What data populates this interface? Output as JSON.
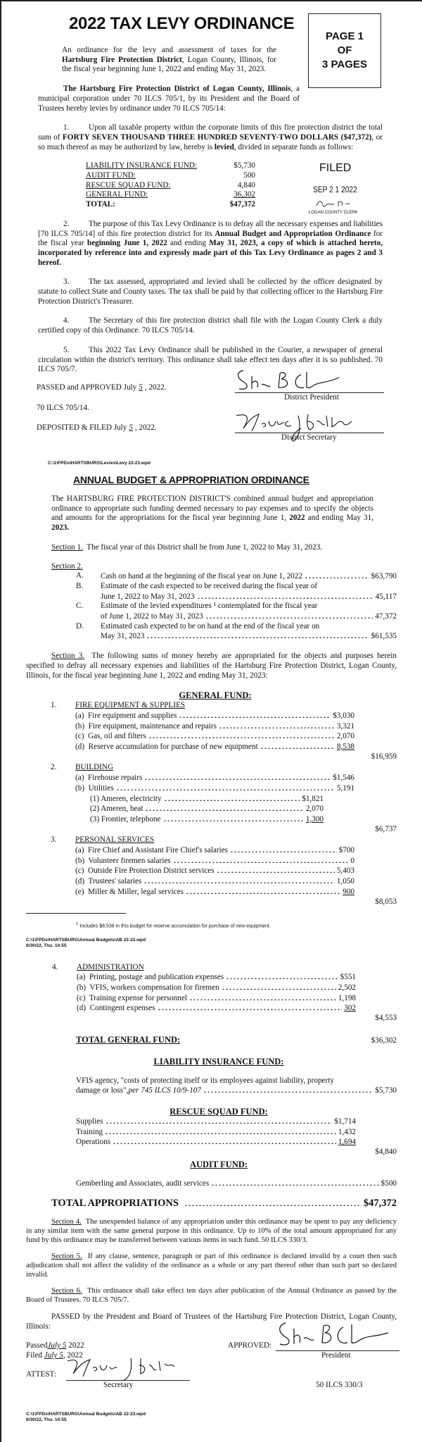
{
  "levy": {
    "title": "2022 TAX LEVY ORDINANCE",
    "page_box": [
      "PAGE 1",
      "OF",
      "3 PAGES"
    ],
    "intro": {
      "pre": "An ordinance for the levy and assessment of taxes for the ",
      "bold": "Hartsburg Fire Protection District",
      "post": ", Logan County, Illinois, for the fiscal year beginning June 1, 2022 and ending May 31, 2023."
    },
    "preamble": {
      "bold": "The Hartsburg Fire Protection District of Logan County, Illinois",
      "post": ", a municipal corporation under 70 ILCS 705/1, by its President and the Board of Trustees hereby levies by ordinance under 70 ILCS 705/14:"
    },
    "item1": {
      "num": "1.",
      "pre": "Upon all taxable property within the corporate limits of this fire protection district the total sum of ",
      "bold": "FORTY SEVEN THOUSAND THREE HUNDRED SEVENTY-TWO DOLLARS ($47,372)",
      "mid": ", or so much thereof as may be authorized by law, hereby is ",
      "bold2": "levied",
      "post": ", divided in separate funds as follows:"
    },
    "funds": [
      {
        "name": "LIABILITY INSURANCE FUND:",
        "amount": "$5,730"
      },
      {
        "name": "AUDIT FUND:",
        "amount": "500"
      },
      {
        "name": "RESCUE SQUAD FUND:",
        "amount": "4,840"
      },
      {
        "name": "GENERAL FUND:",
        "amount": "36,302"
      }
    ],
    "funds_total": {
      "name": "TOTAL:",
      "amount": "$47,372"
    },
    "stamp": {
      "filed": "FILED",
      "date": "SEP 2 1 2022",
      "clerk": "LOGAN COUNTY CLERK"
    },
    "item2": {
      "num": "2.",
      "a": "The purpose of this Tax Levy Ordinance is to defray all the necessary expenses and liabilities [70 ILCS 705/14] of this fire protection district for its ",
      "b": "Annual Budget and Appropriation Ordinance",
      "c": " for the fiscal year ",
      "d": "beginning June 1, 2022",
      "e": " and ending ",
      "f": "May 31, 2023, a copy of which is attached hereto, incorporated by reference into and expressly made part of this Tax Levy Ordinance as pages 2 and 3 hereof."
    },
    "item3": {
      "num": "3.",
      "text": "The tax assessed, appropriated and levied shall be collected by the officer designated by statute to collect State and County taxes.  The tax shall be paid by that collecting officer to the Hartsburg Fire Protection District's Treasurer."
    },
    "item4": {
      "num": "4.",
      "text": "The Secretary of this fire protection district shall file with the Logan County Clerk a duly certified copy of this Ordinance.  70 ILCS 705/14."
    },
    "item5": {
      "num": "5.",
      "text": "This 2022 Tax Levy Ordinance shall be published in the Courier, a newspaper of general circulation within the district's territory.  This ordinance shall take effect ten days after it is so published. 70 ILCS 705/7."
    },
    "passed": {
      "pre": "PASSED and APPROVED July",
      "day": "5",
      "post": ", 2022."
    },
    "president_label": "District President",
    "statute": "70 ILCS 705/14.",
    "deposited": {
      "pre": "DEPOSITED & FILED July",
      "day": "5",
      "post": ", 2022."
    },
    "secretary_label": "District Secretary",
    "file_path": "C:\\1\\FPDs\\HARTSBURG\\Levies\\Levy 22-23.wpd"
  },
  "budget": {
    "title": "ANNUAL BUDGET & APPROPRIATION ORDINANCE",
    "intro": {
      "pre": "The HARTSBURG FIRE PROTECTION DISTRICT'S combined annual budget and appropriation ordinance to appropriate such funding deemed necessary to pay expenses and to specify the objects and amounts for the appropriations for the fiscal year beginning June 1, ",
      "b1": "2022",
      "mid": " and ending May 31, ",
      "b2": "2023."
    },
    "section1": {
      "label": "Section 1.",
      "text": "The fiscal year of this District shall be from June 1, 2022 to May 31, 2023."
    },
    "section2": {
      "label": "Section 2.",
      "items": [
        {
          "letter": "A.",
          "line1": "",
          "line2": "Cash on hand at the beginning of the fiscal year on June 1, 2022",
          "amount": "$63,790"
        },
        {
          "letter": "B.",
          "line1": "Estimate of the cash expected to be received during the fiscal year of",
          "line2": "June 1, 2022 to May 31, 2023",
          "amount": "45,117"
        },
        {
          "letter": "C.",
          "line1": "Estimate of the levied expenditures ¹ contemplated for the fiscal year",
          "line2": "of June 1, 2022 to May 31, 2023",
          "amount": "47,372"
        },
        {
          "letter": "D.",
          "line1": "Estimated cash expected to be on hand at the end of the fiscal year on",
          "line2": "May 31, 2023",
          "amount": "$61,535"
        }
      ]
    },
    "section3": {
      "label": "Section 3.",
      "text": "The following sums of money hereby are appropriated for the objects and purposes herein specified to defray all necessary expenses and liabilities of the Hartsburg Fire Protection District, Logan County, Illinois, for the fiscal year beginning June 1, 2022 and ending May 31, 2023:"
    },
    "general_fund": {
      "heading": "GENERAL FUND:",
      "groups": [
        {
          "num": "1.",
          "name": "FIRE EQUIPMENT & SUPPLIES",
          "items": [
            {
              "label": "(a)  Fire equipment and supplies",
              "amount": "$3,030"
            },
            {
              "label": "(b)  Fire equipment, maintenance and repairs",
              "amount": "3,321"
            },
            {
              "label": "(c)  Gas, oil and filters",
              "amount": "2,070"
            },
            {
              "label": "(d)  Reserve accumulation for purchase of new equipment",
              "amount": "8,538"
            }
          ],
          "subitems": [],
          "subtotal": "$16,959"
        },
        {
          "num": "2.",
          "name": "BUILDING",
          "items": [
            {
              "label": "(a)  Firehouse repairs",
              "amount": "$1,546"
            },
            {
              "label": "(b)  Utilities",
              "amount": "5,191"
            }
          ],
          "subitems": [
            {
              "label": "(1) Ameren, electricity",
              "amount": "$1,821"
            },
            {
              "label": "(2) Ameren, heat",
              "amount": "2,070"
            },
            {
              "label": "(3) Frontier, telephone",
              "amount": "1,300"
            }
          ],
          "subtotal": "$6,737"
        },
        {
          "num": "3.",
          "name": "PERSONAL SERVICES",
          "items": [
            {
              "label": "(a)  Fire Chief and Assistant Fire Chief's salaries",
              "amount": "$700"
            },
            {
              "label": "(b)  Volunteer firemen salaries",
              "amount": "0"
            },
            {
              "label": "(c)  Outside Fire Protection District services",
              "amount": "5,403"
            },
            {
              "label": "(d)  Trustees' salaries",
              "amount": "1,050"
            },
            {
              "label": "(e)  Miller & Miller, legal services",
              "amount": "900"
            }
          ],
          "subitems": [],
          "subtotal": "$8,053"
        },
        {
          "num": "4.",
          "name": "ADMINISTRATION",
          "items": [
            {
              "label": "(a)  Printing, postage and publication expenses",
              "amount": "$551"
            },
            {
              "label": "(b)  VFIS, workers compensation for firemen",
              "amount": "2,502"
            },
            {
              "label": "(c)  Training expense for personnel",
              "amount": "1,198"
            },
            {
              "label": "(d)  Contingent expenses",
              "amount": "302"
            }
          ],
          "subitems": [],
          "subtotal": "$4,553"
        }
      ],
      "total_label": "TOTAL GENERAL FUND:",
      "total": "$36,302"
    },
    "footnote": "Includes $8,538 in this budget for reserve accumulation for purchase of new equipment.",
    "footnote_mark": "1",
    "file_path": "C:\\1\\FPDs\\HARTSBURG\\Annual Budgets\\AB 22-23.wpd",
    "file_date": "6/30/22, Thu. 14:55",
    "liability_fund": {
      "heading": "LIABILITY INSURANCE FUND:",
      "line1": "VFIS agency, \"costs of protecting itself or its employees against liability, property",
      "line2": "damage or loss\", ",
      "line2_italic": "per 745 ILCS 10/9-107",
      "amount": "$5,730"
    },
    "rescue_fund": {
      "heading": "RESCUE SQUAD FUND:",
      "items": [
        {
          "label": "Supplies",
          "amount": "$1,714"
        },
        {
          "label": "Training",
          "amount": "1,432"
        },
        {
          "label": "Operations",
          "amount": "1,694"
        }
      ],
      "subtotal": "$4,840"
    },
    "audit_fund": {
      "heading": "AUDIT FUND:",
      "label": "Gemberling and Associates, audit services",
      "amount": "$500"
    },
    "total_appropriations": {
      "label": "TOTAL APPROPRIATIONS",
      "amount": "$47,372"
    },
    "section4": {
      "label": "Section 4.",
      "text": "The unexpended balance of any appropriation under this ordinance may be spent to pay any deficiency in any similar item with the same general purpose in this ordinance.  Up to 10% of the total amount appropriated for any fund by this ordinance may be transferred between various items in such fund.  50 ILCS 330/3."
    },
    "section5": {
      "label": "Section 5.",
      "text": "If any clause, sentence, paragraph or part of this ordinance is declared invalid by a court then such adjudication shall not affect the validity of the ordinance as a whole or any part thereof other than such part so declared invalid."
    },
    "section6": {
      "label": "Section 6.",
      "text": "This ordinance shall take effect ten days after publication of the Annual Ordinance as passed by the Board of Trustees.  70 ILCS 705/7."
    },
    "passed_text": "PASSED by the President and Board of Trustees of the Hartsburg Fire Protection District, Logan County, Illinois:",
    "passed_label": "Passed",
    "passed_date": "July 5",
    "passed_year": "2022",
    "filed_label": "Filed",
    "filed_date": "July 5",
    "filed_year": ", 2022",
    "approved_label": "APPROVED:",
    "president_label": "President",
    "attest_label": "ATTEST:",
    "secretary_label": "Secretary",
    "statute": "50 ILCS 330/3"
  }
}
